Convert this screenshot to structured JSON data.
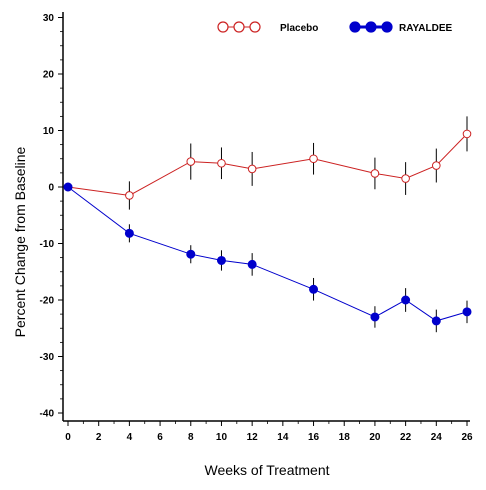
{
  "chart_data": {
    "type": "line",
    "xlabel": "Weeks of Treatment",
    "ylabel": "Percent Change from Baseline",
    "ylim": [
      -40,
      30
    ],
    "xlim": [
      0,
      26
    ],
    "y_ticks": [
      30,
      20,
      10,
      0,
      -10,
      -20,
      -30,
      -40
    ],
    "x_ticks": [
      0,
      2,
      4,
      6,
      8,
      10,
      12,
      14,
      16,
      18,
      20,
      22,
      24,
      26
    ],
    "legend_position": "top-right",
    "grid": false,
    "series": [
      {
        "name": "Placebo",
        "color": "#cc2222",
        "marker": "open-circle",
        "x": [
          0,
          4,
          8,
          10,
          12,
          16,
          20,
          22,
          24,
          26
        ],
        "y": [
          0,
          -1.5,
          4.5,
          4.2,
          3.2,
          5.0,
          2.4,
          1.5,
          3.8,
          9.4
        ],
        "err": [
          0,
          2.5,
          3.2,
          2.8,
          3.0,
          2.8,
          2.8,
          2.9,
          3.0,
          3.1
        ]
      },
      {
        "name": "RAYALDEE",
        "color": "#0000cc",
        "marker": "filled-circle",
        "x": [
          0,
          4,
          8,
          10,
          12,
          16,
          20,
          22,
          24,
          26
        ],
        "y": [
          0,
          -8.2,
          -11.9,
          -13.0,
          -13.7,
          -18.1,
          -23.0,
          -20.0,
          -23.7,
          -22.1
        ],
        "err": [
          0,
          1.6,
          1.6,
          1.8,
          2.0,
          2.0,
          1.9,
          2.1,
          2.0,
          2.0
        ]
      }
    ]
  }
}
